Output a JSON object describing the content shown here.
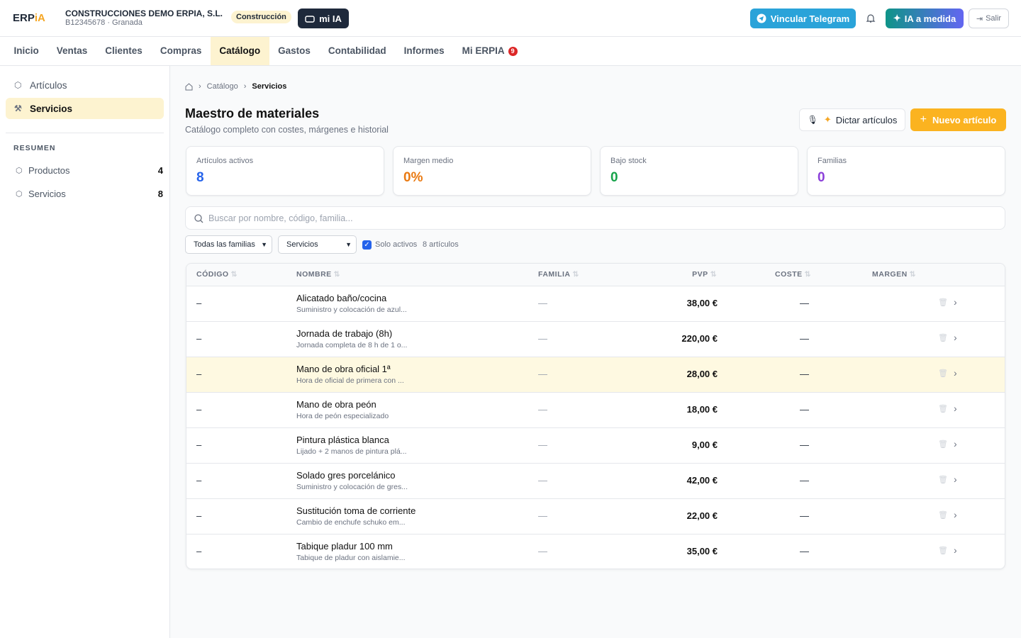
{
  "header": {
    "logo": {
      "main": "ERP",
      "accent": "iA"
    },
    "company": "CONSTRUCCIONES DEMO ERPIA, S.L.",
    "subtitle": "B12345678 · Granada",
    "sector": "Construcción",
    "mi_ia": "mi IA",
    "telegram": "Vincular Telegram",
    "ia_medida": "IA a medida",
    "logout": "Salir"
  },
  "nav": {
    "items": [
      "Inicio",
      "Ventas",
      "Clientes",
      "Compras",
      "Catálogo",
      "Gastos",
      "Contabilidad",
      "Informes",
      "Mi ERPIA"
    ],
    "active": 4,
    "badge": "9"
  },
  "sidebar": {
    "items": [
      "Artículos",
      "Servicios"
    ],
    "active": 1,
    "section": "RESUMEN",
    "summary": [
      {
        "label": "Productos",
        "count": 4
      },
      {
        "label": "Servicios",
        "count": 8
      }
    ]
  },
  "breadcrumb": [
    "Catálogo",
    "Servicios"
  ],
  "page": {
    "title": "Maestro de materiales",
    "subtitle": "Catálogo completo con costes, márgenes e historial",
    "dictate": "Dictar artículos",
    "new": "Nuevo artículo"
  },
  "stats": [
    {
      "label": "Artículos activos",
      "value": 8
    },
    {
      "label": "Margen medio",
      "value": "0%"
    },
    {
      "label": "Bajo stock",
      "value": 0
    },
    {
      "label": "Familias",
      "value": 0
    }
  ],
  "search": {
    "placeholder": "Buscar por nombre, código, familia..."
  },
  "filters": {
    "family": "Todas las familias",
    "type": "Servicios",
    "active_only": "Solo activos",
    "count": "8 artículos"
  },
  "table": {
    "headers": [
      "CÓDIGO",
      "NOMBRE",
      "FAMILIA",
      "PVP",
      "COSTE",
      "MARGEN"
    ],
    "rows": [
      {
        "code": "–",
        "name": "Alicatado baño/cocina",
        "desc": "Suministro y colocación de azul...",
        "family": "—",
        "price": "38,00 €",
        "cost": "—"
      },
      {
        "code": "–",
        "name": "Jornada de trabajo (8h)",
        "desc": "Jornada completa de 8 h de 1 o...",
        "family": "—",
        "price": "220,00 €",
        "cost": "—"
      },
      {
        "code": "–",
        "name": "Mano de obra oficial 1ª",
        "desc": "Hora de oficial de primera con ...",
        "family": "—",
        "price": "28,00 €",
        "cost": "—"
      },
      {
        "code": "–",
        "name": "Mano de obra peón",
        "desc": "Hora de peón especializado",
        "family": "—",
        "price": "18,00 €",
        "cost": "—"
      },
      {
        "code": "–",
        "name": "Pintura plástica blanca",
        "desc": "Lijado + 2 manos de pintura plá...",
        "family": "—",
        "price": "9,00 €",
        "cost": "—"
      },
      {
        "code": "–",
        "name": "Solado gres porcelánico",
        "desc": "Suministro y colocación de gres...",
        "family": "—",
        "price": "42,00 €",
        "cost": "—"
      },
      {
        "code": "–",
        "name": "Sustitución toma de corriente",
        "desc": "Cambio de enchufe schuko em...",
        "family": "—",
        "price": "22,00 €",
        "cost": "—"
      },
      {
        "code": "–",
        "name": "Tabique pladur 100 mm",
        "desc": "Tabique de pladur con aislamie...",
        "family": "—",
        "price": "35,00 €",
        "cost": "—"
      }
    ]
  }
}
